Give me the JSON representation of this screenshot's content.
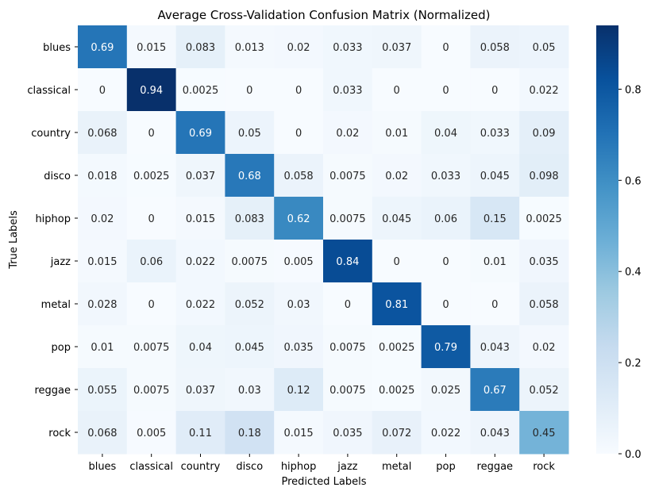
{
  "chart_data": {
    "type": "heatmap",
    "title": "Average Cross-Validation Confusion Matrix (Normalized)",
    "xlabel": "Predicted Labels",
    "ylabel": "True Labels",
    "x_categories": [
      "blues",
      "classical",
      "country",
      "disco",
      "hiphop",
      "jazz",
      "metal",
      "pop",
      "reggae",
      "rock"
    ],
    "y_categories": [
      "blues",
      "classical",
      "country",
      "disco",
      "hiphop",
      "jazz",
      "metal",
      "pop",
      "reggae",
      "rock"
    ],
    "values": [
      [
        0.69,
        0.015,
        0.083,
        0.013,
        0.02,
        0.033,
        0.037,
        0,
        0.058,
        0.05
      ],
      [
        0,
        0.94,
        0.0025,
        0,
        0,
        0.033,
        0,
        0,
        0,
        0.022
      ],
      [
        0.068,
        0,
        0.69,
        0.05,
        0,
        0.02,
        0.01,
        0.04,
        0.033,
        0.09
      ],
      [
        0.018,
        0.0025,
        0.037,
        0.68,
        0.058,
        0.0075,
        0.02,
        0.033,
        0.045,
        0.098
      ],
      [
        0.02,
        0,
        0.015,
        0.083,
        0.62,
        0.0075,
        0.045,
        0.06,
        0.15,
        0.0025
      ],
      [
        0.015,
        0.06,
        0.022,
        0.0075,
        0.005,
        0.84,
        0,
        0,
        0.01,
        0.035
      ],
      [
        0.028,
        0,
        0.022,
        0.052,
        0.03,
        0,
        0.81,
        0,
        0,
        0.058
      ],
      [
        0.01,
        0.0075,
        0.04,
        0.045,
        0.035,
        0.0075,
        0.0025,
        0.79,
        0.043,
        0.02
      ],
      [
        0.055,
        0.0075,
        0.037,
        0.03,
        0.12,
        0.0075,
        0.0025,
        0.025,
        0.67,
        0.052
      ],
      [
        0.068,
        0.005,
        0.11,
        0.18,
        0.015,
        0.035,
        0.072,
        0.022,
        0.043,
        0.45
      ]
    ],
    "colorbar": {
      "colormap": "Blues",
      "range": [
        0,
        0.94
      ],
      "ticks": [
        0.0,
        0.2,
        0.4,
        0.6,
        0.8
      ],
      "tick_labels": [
        "0.0",
        "0.2",
        "0.4",
        "0.6",
        "0.8"
      ]
    }
  }
}
